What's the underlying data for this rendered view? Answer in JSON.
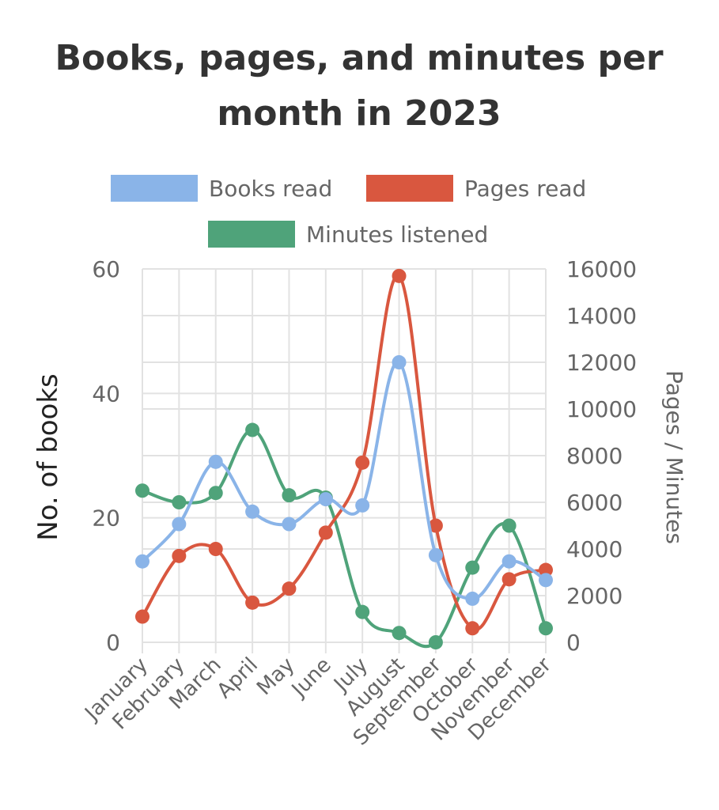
{
  "chart_data": {
    "type": "line",
    "title_lines": [
      "Books, pages, and minutes per",
      "month in 2023"
    ],
    "categories": [
      "January",
      "February",
      "March",
      "April",
      "May",
      "June",
      "July",
      "August",
      "September",
      "October",
      "November",
      "December"
    ],
    "series": [
      {
        "name": "Books read",
        "axis": "left",
        "color": "#8ab4e8",
        "values": [
          13,
          19,
          29,
          21,
          19,
          23,
          22,
          45,
          14,
          7,
          13,
          10
        ]
      },
      {
        "name": "Pages read",
        "axis": "right",
        "color": "#d9573f",
        "values": [
          1100,
          3700,
          4000,
          1700,
          2300,
          4700,
          7700,
          15700,
          5000,
          600,
          2700,
          3100
        ]
      },
      {
        "name": "Minutes listened",
        "axis": "right",
        "color": "#4fa37a",
        "values": [
          6500,
          6000,
          6400,
          9100,
          6300,
          6200,
          1300,
          400,
          0,
          3200,
          5000,
          600
        ]
      }
    ],
    "ylabel": "No. of books",
    "ylabel_right": "Pages / Minutes",
    "ylim": [
      0,
      60
    ],
    "yticks": [
      "0",
      "20",
      "40",
      "60"
    ],
    "ylim_right": [
      0,
      16000
    ],
    "yticks_right": [
      "0",
      "2000",
      "4000",
      "6000",
      "8000",
      "10000",
      "12000",
      "14000",
      "16000"
    ],
    "grid": true,
    "legend_position": "top"
  }
}
